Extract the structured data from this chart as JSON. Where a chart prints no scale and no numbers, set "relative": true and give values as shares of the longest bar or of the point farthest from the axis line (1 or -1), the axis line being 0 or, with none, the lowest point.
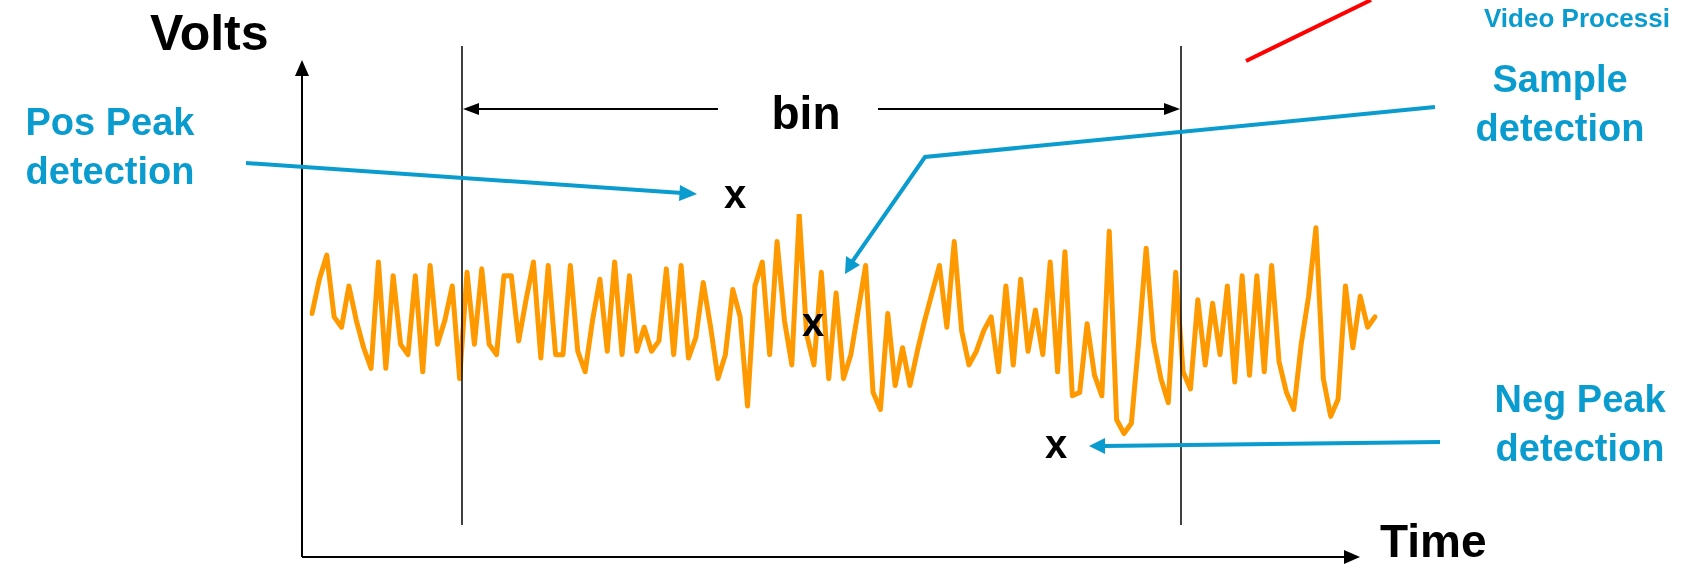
{
  "chart_data": {
    "type": "line",
    "xlabel": "Time",
    "ylabel": "Volts",
    "relative": true,
    "marker": "none",
    "line_style": "solid",
    "categories": [
      null,
      null,
      null,
      null,
      null,
      null,
      null,
      null,
      null,
      null,
      null,
      null,
      null,
      null,
      null,
      null,
      null,
      null,
      null,
      null,
      null,
      null,
      null,
      null,
      null,
      null,
      null,
      null,
      null,
      null,
      null,
      null,
      null,
      null,
      null,
      null,
      null,
      null,
      null,
      null,
      null,
      null,
      null,
      null,
      null,
      null,
      null,
      null,
      null,
      null,
      null,
      null,
      null,
      null,
      null,
      null,
      null,
      null,
      null,
      null,
      null,
      null,
      null,
      null,
      null,
      null,
      null,
      null,
      null,
      null,
      null,
      null,
      null,
      null,
      null,
      null,
      null,
      null,
      null,
      null,
      null,
      null,
      null,
      null,
      null,
      null,
      null,
      null,
      null,
      null,
      null,
      null,
      null,
      null,
      null,
      null,
      null,
      null,
      null,
      null,
      null,
      null,
      null,
      null,
      null,
      null,
      null,
      null,
      null,
      null,
      null,
      null,
      null,
      null,
      null,
      null,
      null,
      null,
      null,
      null,
      null,
      null,
      null,
      null,
      null,
      null,
      null,
      null,
      null,
      null,
      null,
      null,
      null,
      null,
      null,
      null,
      null,
      null,
      null,
      null,
      null,
      null,
      null,
      null,
      null
    ],
    "series": [
      {
        "color": "#ff9900",
        "values": [
          0.71,
          0.81,
          0.88,
          0.7,
          0.67,
          0.79,
          0.69,
          0.61,
          0.55,
          0.86,
          0.55,
          0.82,
          0.62,
          0.59,
          0.82,
          0.54,
          0.85,
          0.62,
          0.69,
          0.79,
          0.52,
          0.83,
          0.62,
          0.84,
          0.62,
          0.59,
          0.82,
          0.82,
          0.63,
          0.75,
          0.86,
          0.58,
          0.85,
          0.59,
          0.59,
          0.85,
          0.6,
          0.54,
          0.69,
          0.81,
          0.6,
          0.86,
          0.59,
          0.82,
          0.6,
          0.67,
          0.6,
          0.63,
          0.84,
          0.59,
          0.85,
          0.58,
          0.64,
          0.8,
          0.67,
          0.52,
          0.59,
          0.78,
          0.7,
          0.44,
          0.79,
          0.86,
          0.59,
          0.92,
          0.69,
          0.56,
          1,
          0.65,
          0.56,
          0.83,
          0.52,
          0.77,
          0.52,
          0.59,
          0.72,
          0.85,
          0.48,
          0.43,
          0.71,
          0.5,
          0.61,
          0.5,
          0.6,
          0.69,
          0.77,
          0.85,
          0.67,
          0.92,
          0.66,
          0.56,
          0.6,
          0.66,
          0.7,
          0.54,
          0.79,
          0.56,
          0.81,
          0.6,
          0.72,
          0.59,
          0.86,
          0.54,
          0.89,
          0.47,
          0.48,
          0.68,
          0.53,
          0.47,
          0.95,
          0.4,
          0.36,
          0.39,
          0.63,
          0.9,
          0.63,
          0.52,
          0.45,
          0.83,
          0.54,
          0.49,
          0.75,
          0.56,
          0.74,
          0.59,
          0.79,
          0.51,
          0.82,
          0.53,
          0.82,
          0.54,
          0.85,
          0.57,
          0.48,
          0.43,
          0.62,
          0.76,
          0.96,
          0.52,
          0.41,
          0.46,
          0.79,
          0.61,
          0.76,
          0.67,
          0.7
        ]
      }
    ],
    "annotations": [
      "Pos Peak detection",
      "Sample detection",
      "Neg Peak detection",
      "bin",
      "x",
      "x",
      "x",
      "Video Processi"
    ]
  }
}
